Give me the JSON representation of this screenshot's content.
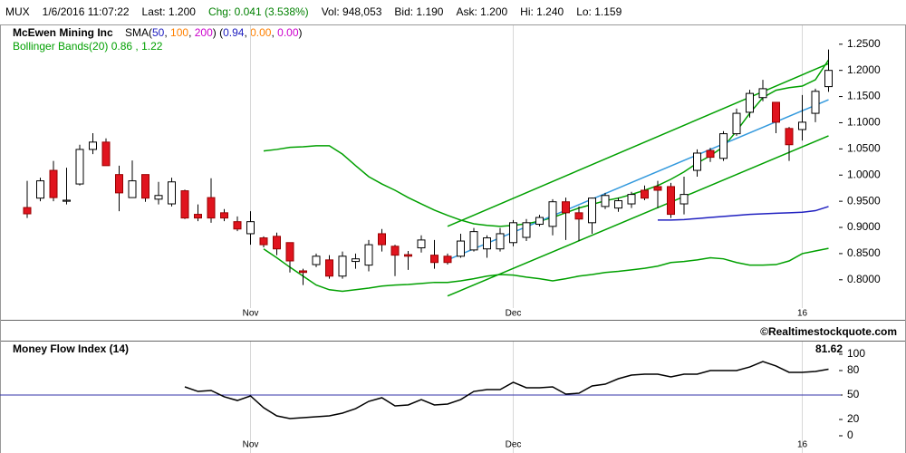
{
  "header": {
    "items": [
      {
        "text": "MUX",
        "color": "#000000"
      },
      {
        "text": "1/6/2016 11:07:22",
        "color": "#000000"
      },
      {
        "text": "Last: 1.200",
        "color": "#000000"
      },
      {
        "text": "Chg: 0.041 (3.538%)",
        "color": "#008000"
      },
      {
        "text": "Vol: 948,053",
        "color": "#000000"
      },
      {
        "text": "Bid: 1.190",
        "color": "#000000"
      },
      {
        "text": "Ask: 1.200",
        "color": "#000000"
      },
      {
        "text": "Hi: 1.240",
        "color": "#000000"
      },
      {
        "text": "Lo: 1.159",
        "color": "#000000"
      }
    ]
  },
  "copyright": "©Realtimestockquote.com",
  "chart_data": [
    {
      "type": "candlestick",
      "title": "McEwen Mining Inc",
      "sma_legend": [
        {
          "text": "SMA(",
          "color": "#000000"
        },
        {
          "text": "50",
          "color": "#2020c0"
        },
        {
          "text": ", ",
          "color": "#000000"
        },
        {
          "text": "100",
          "color": "#ff8000"
        },
        {
          "text": ", ",
          "color": "#000000"
        },
        {
          "text": "200",
          "color": "#cc00cc"
        },
        {
          "text": ")   (",
          "color": "#000000"
        },
        {
          "text": "0.94",
          "color": "#2020c0"
        },
        {
          "text": ", ",
          "color": "#000000"
        },
        {
          "text": "0.00",
          "color": "#ff8000"
        },
        {
          "text": ", ",
          "color": "#000000"
        },
        {
          "text": "0.00",
          "color": "#cc00cc"
        },
        {
          "text": ")",
          "color": "#000000"
        }
      ],
      "bollinger_legend": "Bollinger Bands(20) 0.86 , 1.22",
      "categories": [
        null,
        null,
        null,
        null,
        null,
        null,
        null,
        null,
        null,
        null,
        null,
        null,
        null,
        null,
        null,
        null,
        null,
        "Nov",
        null,
        null,
        null,
        null,
        null,
        null,
        null,
        null,
        null,
        null,
        null,
        null,
        null,
        null,
        null,
        null,
        null,
        null,
        null,
        "Dec",
        null,
        null,
        null,
        null,
        null,
        null,
        null,
        null,
        null,
        null,
        null,
        null,
        null,
        null,
        null,
        null,
        null,
        null,
        null,
        null,
        null,
        "16",
        null,
        null
      ],
      "open": [
        0.938,
        0.956,
        1.009,
        0.95,
        0.983,
        1.049,
        1.063,
        1.001,
        0.957,
        1.001,
        0.954,
        0.945,
        0.97,
        0.925,
        0.957,
        0.928,
        0.911,
        0.888,
        0.88,
        0.883,
        0.871,
        0.817,
        0.829,
        0.838,
        0.807,
        0.835,
        0.828,
        0.888,
        0.864,
        0.848,
        0.861,
        0.847,
        0.845,
        0.845,
        0.857,
        0.859,
        0.859,
        0.871,
        0.881,
        0.906,
        0.902,
        0.949,
        0.928,
        0.909,
        0.94,
        0.937,
        0.945,
        0.971,
        0.978,
        0.978,
        0.945,
        1.009,
        1.047,
        1.032,
        1.079,
        1.12,
        1.148,
        1.139,
        1.089,
        1.087,
        1.118,
        1.169
      ],
      "high": [
        0.989,
        0.995,
        1.027,
        1.014,
        1.058,
        1.08,
        1.07,
        1.018,
        1.028,
        1.001,
        0.987,
        0.995,
        0.972,
        0.944,
        0.994,
        0.935,
        0.921,
        0.931,
        0.883,
        0.89,
        0.871,
        0.821,
        0.85,
        0.847,
        0.854,
        0.85,
        0.876,
        0.897,
        0.867,
        0.855,
        0.885,
        0.876,
        0.85,
        0.888,
        0.899,
        0.885,
        0.899,
        0.914,
        0.916,
        0.924,
        0.954,
        0.957,
        0.94,
        0.957,
        0.966,
        0.957,
        0.968,
        0.98,
        0.989,
        0.985,
        0.997,
        1.049,
        1.052,
        1.084,
        1.127,
        1.163,
        1.182,
        1.139,
        1.092,
        1.153,
        1.165,
        1.24
      ],
      "low": [
        0.918,
        0.95,
        0.95,
        0.944,
        0.98,
        1.04,
        1.018,
        0.931,
        0.957,
        0.949,
        0.944,
        0.94,
        0.916,
        0.912,
        0.909,
        0.912,
        0.893,
        0.867,
        0.862,
        0.847,
        0.814,
        0.79,
        0.824,
        0.802,
        0.802,
        0.821,
        0.816,
        0.854,
        0.807,
        0.819,
        0.852,
        0.821,
        0.829,
        0.842,
        0.854,
        0.842,
        0.854,
        0.864,
        0.874,
        0.902,
        0.885,
        0.876,
        0.874,
        0.888,
        0.935,
        0.93,
        0.937,
        0.952,
        0.937,
        0.918,
        0.925,
        0.997,
        1.025,
        1.027,
        1.075,
        1.11,
        1.141,
        1.08,
        1.027,
        1.066,
        1.101,
        1.159
      ],
      "close": [
        0.926,
        0.989,
        0.957,
        0.952,
        1.049,
        1.063,
        1.018,
        0.966,
        0.989,
        0.956,
        0.961,
        0.987,
        0.918,
        0.918,
        0.918,
        0.918,
        0.897,
        0.911,
        0.867,
        0.859,
        0.836,
        0.814,
        0.845,
        0.807,
        0.845,
        0.84,
        0.867,
        0.867,
        0.847,
        0.845,
        0.876,
        0.833,
        0.833,
        0.874,
        0.892,
        0.88,
        0.888,
        0.909,
        0.909,
        0.919,
        0.949,
        0.928,
        0.916,
        0.956,
        0.961,
        0.951,
        0.963,
        0.956,
        0.971,
        0.925,
        0.963,
        1.042,
        1.034,
        1.079,
        1.118,
        1.156,
        1.165,
        1.101,
        1.058,
        1.101,
        1.16,
        1.2
      ],
      "up_color": "#ffffff",
      "down_color": "#e0141e",
      "bollinger": {
        "color": "#00a000",
        "upper": [
          null,
          null,
          null,
          null,
          null,
          null,
          null,
          null,
          null,
          null,
          null,
          null,
          null,
          null,
          null,
          null,
          null,
          null,
          1.046,
          1.049,
          1.053,
          1.054,
          1.056,
          1.056,
          1.04,
          1.018,
          0.997,
          0.983,
          0.971,
          0.957,
          0.945,
          0.933,
          0.923,
          0.914,
          0.907,
          0.904,
          0.902,
          0.904,
          0.907,
          0.912,
          0.919,
          0.928,
          0.937,
          0.944,
          0.951,
          0.956,
          0.963,
          0.971,
          0.98,
          0.992,
          1.006,
          1.023,
          1.037,
          1.054,
          1.084,
          1.118,
          1.148,
          1.162,
          1.167,
          1.17,
          1.182,
          1.22
        ],
        "lower": [
          null,
          null,
          null,
          null,
          null,
          null,
          null,
          null,
          null,
          null,
          null,
          null,
          null,
          null,
          null,
          null,
          null,
          null,
          0.859,
          0.842,
          0.824,
          0.807,
          0.79,
          0.781,
          0.778,
          0.781,
          0.784,
          0.788,
          0.79,
          0.791,
          0.793,
          0.795,
          0.795,
          0.798,
          0.802,
          0.807,
          0.81,
          0.809,
          0.805,
          0.802,
          0.798,
          0.802,
          0.807,
          0.81,
          0.814,
          0.816,
          0.819,
          0.822,
          0.826,
          0.833,
          0.835,
          0.838,
          0.842,
          0.84,
          0.833,
          0.828,
          0.828,
          0.829,
          0.836,
          0.85,
          0.855,
          0.86
        ]
      },
      "sma": {
        "color": "#2020c0",
        "values": [
          null,
          null,
          null,
          null,
          null,
          null,
          null,
          null,
          null,
          null,
          null,
          null,
          null,
          null,
          null,
          null,
          null,
          null,
          null,
          null,
          null,
          null,
          null,
          null,
          null,
          null,
          null,
          null,
          null,
          null,
          null,
          null,
          null,
          null,
          null,
          null,
          null,
          null,
          null,
          null,
          null,
          null,
          null,
          null,
          null,
          null,
          null,
          null,
          0.914,
          0.914,
          0.915,
          0.917,
          0.919,
          0.921,
          0.923,
          0.925,
          0.926,
          0.927,
          0.928,
          0.929,
          0.932,
          0.94
        ]
      },
      "trendlines": [
        {
          "color": "#00a000",
          "x": [
            32,
            61
          ],
          "values": [
            0.902,
            1.213
          ]
        },
        {
          "color": "#3399dd",
          "x": [
            32,
            61
          ],
          "values": [
            0.838,
            1.144
          ]
        },
        {
          "color": "#00a000",
          "x": [
            32,
            61
          ],
          "values": [
            0.769,
            1.075
          ]
        }
      ],
      "ylim": [
        0.746,
        1.286
      ],
      "yticks": [
        {
          "value": 1.25,
          "label": "1.2500"
        },
        {
          "value": 1.2,
          "label": "1.2000"
        },
        {
          "value": 1.15,
          "label": "1.1500"
        },
        {
          "value": 1.1,
          "label": "1.1000"
        },
        {
          "value": 1.05,
          "label": "1.0500"
        },
        {
          "value": 1.0,
          "label": "1.0000"
        },
        {
          "value": 0.95,
          "label": "0.9500"
        },
        {
          "value": 0.9,
          "label": "0.9000"
        },
        {
          "value": 0.85,
          "label": "0.8500"
        },
        {
          "value": 0.8,
          "label": "0.8000"
        }
      ],
      "grid": "x"
    },
    {
      "type": "line",
      "title": "Money Flow Index (14)",
      "color": "#000000",
      "categories": [
        null,
        null,
        null,
        null,
        null,
        null,
        null,
        null,
        null,
        null,
        null,
        null,
        null,
        null,
        null,
        null,
        null,
        "Nov",
        null,
        null,
        null,
        null,
        null,
        null,
        null,
        null,
        null,
        null,
        null,
        null,
        null,
        null,
        null,
        null,
        null,
        null,
        null,
        "Dec",
        null,
        null,
        null,
        null,
        null,
        null,
        null,
        null,
        null,
        null,
        null,
        null,
        null,
        null,
        null,
        null,
        null,
        null,
        null,
        null,
        null,
        "16",
        null,
        null
      ],
      "values": [
        null,
        null,
        null,
        null,
        null,
        null,
        null,
        null,
        null,
        null,
        null,
        null,
        60,
        54.4,
        55.6,
        47.8,
        43.3,
        48.9,
        34.4,
        24.4,
        21.1,
        22.2,
        23.3,
        24.4,
        27.8,
        33.3,
        42.2,
        46.7,
        36.7,
        37.8,
        44.4,
        37.8,
        38.9,
        44.4,
        54.4,
        56.7,
        56.7,
        65.6,
        58.9,
        58.9,
        60,
        51.1,
        52.2,
        61.1,
        63.3,
        70,
        74.4,
        75.6,
        75.6,
        72.2,
        75.6,
        75.6,
        80,
        80,
        80,
        84.4,
        91.1,
        85.6,
        77.8,
        77.8,
        78.9,
        81.62
      ],
      "reference_line": {
        "value": 50,
        "color": "#3333aa"
      },
      "ylim": [
        0,
        100
      ],
      "yticks": [
        0,
        20,
        50,
        80,
        100
      ],
      "grid": "x"
    }
  ]
}
